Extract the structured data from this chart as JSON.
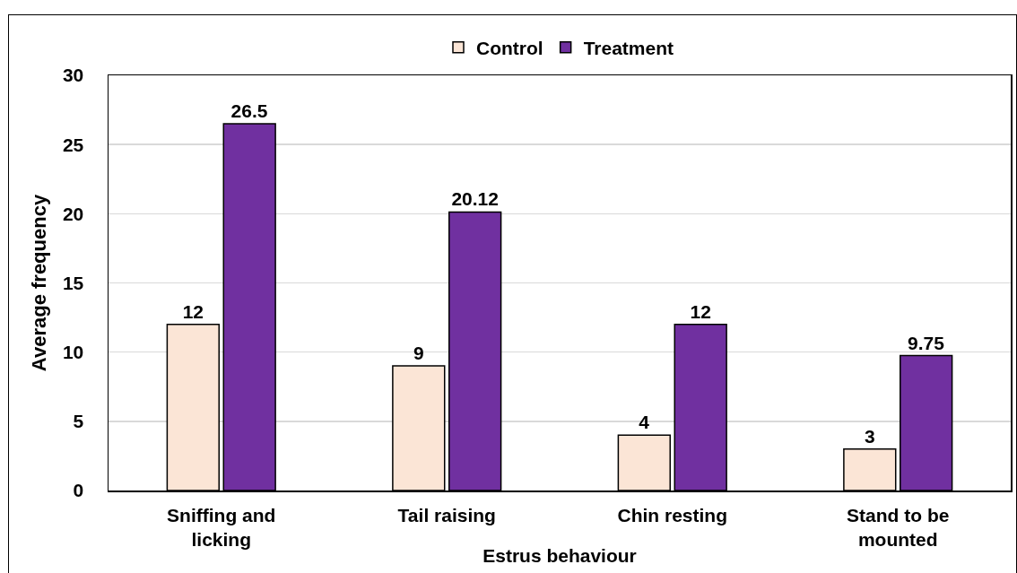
{
  "chart_data": {
    "type": "bar",
    "xlabel": "Estrus behaviour",
    "ylabel": "Average frequency",
    "categories": [
      "Sniffing and licking",
      "Tail raising",
      "Chin resting",
      "Stand to be mounted"
    ],
    "series": [
      {
        "name": "Control",
        "color": "#fbe5d6",
        "values": [
          12,
          9,
          4,
          3
        ]
      },
      {
        "name": "Treatment",
        "color": "#7030a0",
        "values": [
          26.5,
          20.12,
          12,
          9.75
        ]
      }
    ],
    "ylim": [
      0,
      30
    ],
    "yticks": [
      0,
      5,
      10,
      15,
      20,
      25,
      30
    ],
    "grid": "y",
    "legend": "top",
    "data_labels": true
  }
}
